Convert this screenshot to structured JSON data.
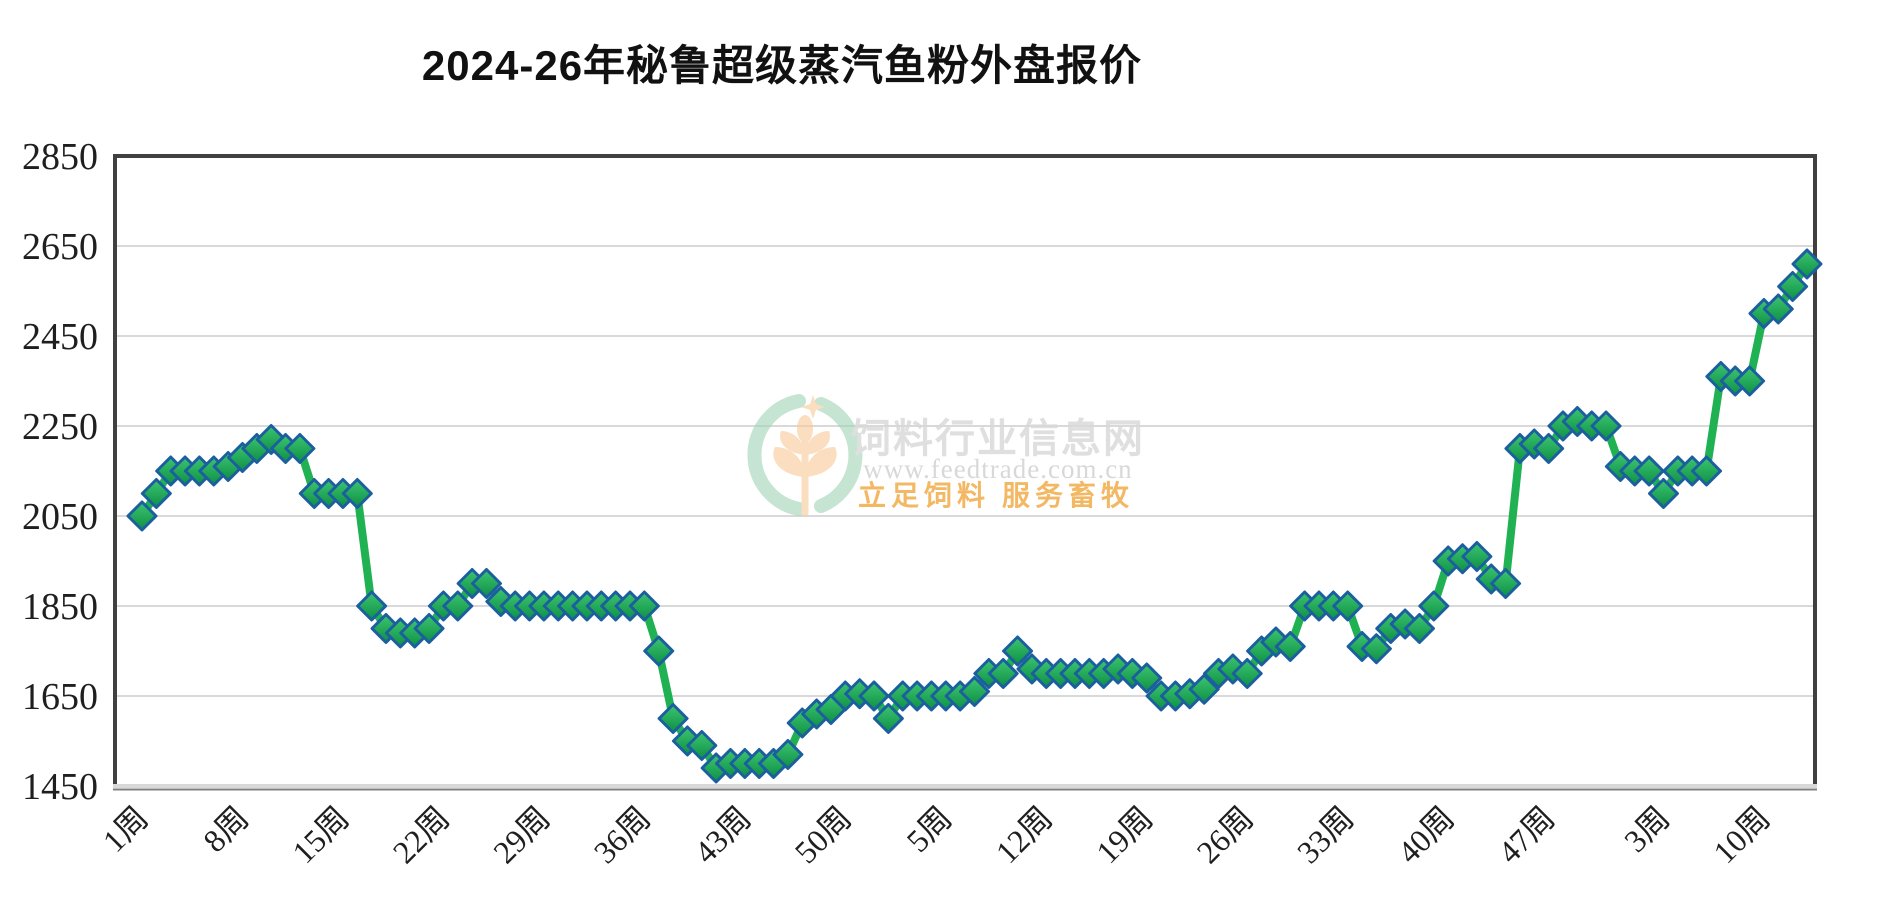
{
  "chart_data": {
    "type": "line",
    "title": "2024-26年秘鲁超级蒸汽鱼粉外盘报价",
    "xlabel": "",
    "ylabel": "",
    "ylim": [
      1450,
      2850
    ],
    "y_ticks": [
      2850,
      2650,
      2450,
      2250,
      2050,
      1850,
      1650,
      1450
    ],
    "grid": "horizontal",
    "legend": "none",
    "x_tick_labels": [
      "1周",
      "8周",
      "15周",
      "22周",
      "29周",
      "36周",
      "43周",
      "50周",
      "5周",
      "12周",
      "19周",
      "26周",
      "33周",
      "40周",
      "47周",
      "3周",
      "10周"
    ],
    "x_tick_indices": [
      0,
      7,
      14,
      21,
      28,
      35,
      42,
      49,
      56,
      63,
      70,
      77,
      84,
      91,
      98,
      106,
      113
    ],
    "x_structure": {
      "start": "2024年第1周",
      "end": "2026年第13周",
      "points_per_year": {
        "2024": 52,
        "2025": 52,
        "2026": 13
      },
      "total_points": 117
    },
    "series": [
      {
        "name": "秘鲁超级蒸汽鱼粉外盘报价",
        "marker": "diamond",
        "values": [
          2050,
          2100,
          2150,
          2150,
          2150,
          2150,
          2160,
          2180,
          2200,
          2220,
          2200,
          2200,
          2100,
          2100,
          2100,
          2100,
          1850,
          1800,
          1790,
          1790,
          1800,
          1850,
          1850,
          1900,
          1900,
          1860,
          1850,
          1850,
          1850,
          1850,
          1850,
          1850,
          1850,
          1850,
          1850,
          1850,
          1750,
          1600,
          1550,
          1540,
          1490,
          1500,
          1500,
          1500,
          1500,
          1520,
          1590,
          1610,
          1620,
          1650,
          1655,
          1650,
          1600,
          1650,
          1650,
          1650,
          1650,
          1650,
          1660,
          1700,
          1700,
          1750,
          1710,
          1700,
          1700,
          1700,
          1700,
          1700,
          1710,
          1700,
          1690,
          1650,
          1650,
          1655,
          1665,
          1700,
          1710,
          1700,
          1750,
          1770,
          1760,
          1850,
          1850,
          1850,
          1850,
          1760,
          1755,
          1800,
          1810,
          1800,
          1850,
          1950,
          1955,
          1960,
          1910,
          1900,
          2200,
          2210,
          2200,
          2250,
          2260,
          2250,
          2250,
          2160,
          2150,
          2150,
          2100,
          2150,
          2150,
          2150,
          2360,
          2350,
          2350,
          2500,
          2510,
          2560,
          2610
        ]
      }
    ]
  },
  "watermark": {
    "site_name": "饲料行业信息网",
    "url": "www.feedtrade.com.cn",
    "slogan": "立足饲料  服务畜牧"
  },
  "colors": {
    "line": "#1fb152",
    "marker_fill_top": "#3cc571",
    "marker_fill_bottom": "#0e8f44",
    "marker_border": "#1b5f9e",
    "gridline": "#d9d9d9",
    "axis_border": "#404040",
    "axis_bottom_light": "#d9d9d9",
    "axis_bottom_dark": "#808080",
    "tick_label": "#1f1f1f",
    "title": "#111111",
    "watermark_text": "#d8d8d8",
    "watermark_url": "#cfcfcf",
    "watermark_slogan": "#f0a73e",
    "watermark_logo_green": "#9fd2b5",
    "watermark_logo_orange": "#f8c995",
    "background": "#ffffff"
  }
}
